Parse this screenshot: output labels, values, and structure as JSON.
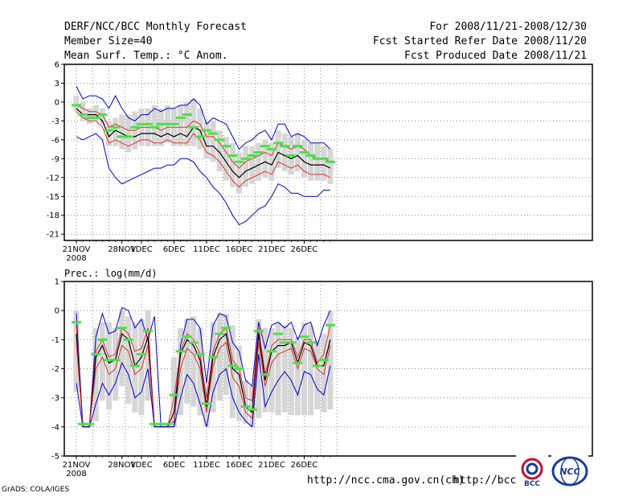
{
  "header": {
    "title": "DERF/NCC/BCC Monthly Forecast",
    "member": "Member Size=40",
    "variable": "Mean Surf. Temp.: °C Anom.",
    "period": "For 2008/11/21-2008/12/30",
    "started": "Fcst Started Refer Date 2008/11/20",
    "produced": "Fcst Produced Date 2008/11/21"
  },
  "footer": {
    "url1": "http://ncc.cma.gov.cn(ch)",
    "url2": "http://bcc.",
    "credit": "GrADS: COLA/IGES",
    "logo1": "BCC",
    "logo2": "NCC"
  },
  "colors": {
    "ensemble": "#000000",
    "spread": "#e03030",
    "extreme": "#0000cc",
    "member": "#49e249",
    "box": "#d6d6d6"
  },
  "chart_data": [
    {
      "type": "line",
      "title": "Mean Surf. Temp.: °C Anom.",
      "ylim": [
        -22,
        6
      ],
      "yticks": [
        6,
        3,
        0,
        -3,
        -6,
        -9,
        -12,
        -15,
        -18,
        -21
      ],
      "xticks": [
        {
          "day": 0,
          "label": "21NOV",
          "sub": "2008"
        },
        {
          "day": 7,
          "label": "28NOV"
        },
        {
          "day": 10,
          "label": "1DEC"
        },
        {
          "day": 15,
          "label": "6DEC"
        },
        {
          "day": 20,
          "label": "11DEC"
        },
        {
          "day": 25,
          "label": "16DEC"
        },
        {
          "day": 30,
          "label": "21DEC"
        },
        {
          "day": 35,
          "label": "26DEC"
        }
      ],
      "days": 40,
      "series": [
        {
          "name": "max",
          "values": [
            2.5,
            0.5,
            1,
            1,
            0.5,
            -1,
            1,
            -1,
            -2.5,
            -3,
            -2,
            -2,
            -1,
            -1.5,
            -1,
            -1,
            -0.5,
            -0.5,
            0.5,
            -0.5,
            -3.5,
            -2.5,
            -3,
            -3.5,
            -5.5,
            -7.5,
            -6.5,
            -6,
            -5,
            -4.5,
            -6,
            -3.5,
            -3.5,
            -5.5,
            -5,
            -5.5,
            -6.5,
            -6.5,
            -6.5,
            -7.5
          ]
        },
        {
          "name": "upper",
          "values": [
            -0.5,
            -1,
            -1.5,
            -1.5,
            -2,
            -4,
            -3.5,
            -4,
            -4.5,
            -4.5,
            -4,
            -4,
            -4,
            -4.5,
            -4,
            -4,
            -4,
            -4,
            -3,
            -3.5,
            -5.5,
            -5.5,
            -6.5,
            -8,
            -9.5,
            -10.5,
            -9.5,
            -9,
            -8.5,
            -8,
            -8.5,
            -6.5,
            -7,
            -7.5,
            -7,
            -7.5,
            -8.5,
            -9,
            -9,
            -9.5
          ]
        },
        {
          "name": "mean",
          "values": [
            -1,
            -2,
            -2,
            -2,
            -3,
            -5.5,
            -4.5,
            -5,
            -5.5,
            -5.5,
            -5,
            -5,
            -5,
            -5.5,
            -5,
            -5.5,
            -5,
            -5.5,
            -4,
            -4.5,
            -7,
            -7,
            -8,
            -9.5,
            -11,
            -12,
            -11,
            -10.5,
            -10,
            -9.5,
            -10,
            -8,
            -8.5,
            -9,
            -8.5,
            -9.5,
            -10,
            -10,
            -10,
            -10.5
          ]
        },
        {
          "name": "lower",
          "values": [
            -1.5,
            -2.5,
            -3,
            -3,
            -4,
            -6.5,
            -6,
            -6.5,
            -7,
            -6.5,
            -6,
            -6,
            -6.5,
            -6.5,
            -6,
            -6.5,
            -6.5,
            -6.5,
            -5,
            -6,
            -8,
            -8.5,
            -9.5,
            -11,
            -12.5,
            -13.5,
            -12.5,
            -12,
            -11.5,
            -11,
            -11.5,
            -9.5,
            -10,
            -10.5,
            -10,
            -11,
            -11.5,
            -11.5,
            -11.5,
            -12
          ]
        },
        {
          "name": "min",
          "values": [
            -5.5,
            -6,
            -5.5,
            -5,
            -6,
            -10.5,
            -12,
            -13,
            -12.5,
            -12,
            -11.5,
            -11,
            -10.5,
            -10.5,
            -10,
            -10,
            -9,
            -9,
            -9.5,
            -11,
            -12,
            -13.5,
            -14.5,
            -16,
            -18,
            -19.5,
            -19,
            -18,
            -17,
            -16.5,
            -15,
            -13,
            -13.5,
            -14.5,
            -14.5,
            -15,
            -15,
            -15,
            -14,
            -14
          ]
        },
        {
          "name": "member",
          "values": [
            -0.5,
            -2,
            -2.5,
            -2.5,
            -2,
            -4.5,
            -4,
            -5.5,
            -5.5,
            -4,
            -3.5,
            -3.5,
            -4,
            -3.5,
            -3.5,
            -3.5,
            -2.5,
            -2,
            -4,
            -5.5,
            -4.5,
            -5,
            -6,
            -7,
            -8.5,
            -9.5,
            -9,
            -8.5,
            -8,
            -7,
            -7.5,
            -6.5,
            -7,
            -8.5,
            -7,
            -8,
            -8.5,
            -9,
            -9,
            -9.5
          ]
        }
      ],
      "box_ranges": [
        [
          -1.5,
          1
        ],
        [
          -3,
          0
        ],
        [
          -3.5,
          -1
        ],
        [
          -3,
          -0.5
        ],
        [
          -3.5,
          -1
        ],
        [
          -7,
          -3
        ],
        [
          -7,
          -2.5
        ],
        [
          -7.5,
          -2
        ],
        [
          -8,
          -2
        ],
        [
          -7.5,
          -1.5
        ],
        [
          -7,
          -1
        ],
        [
          -7,
          -1
        ],
        [
          -7,
          -0.5
        ],
        [
          -7,
          -1
        ],
        [
          -6.5,
          -0.5
        ],
        [
          -7,
          -1
        ],
        [
          -7,
          -0.5
        ],
        [
          -7,
          0
        ],
        [
          -7,
          0.5
        ],
        [
          -7.5,
          -1
        ],
        [
          -9,
          -3
        ],
        [
          -9.5,
          -3
        ],
        [
          -11,
          -4.5
        ],
        [
          -12.5,
          -5.5
        ],
        [
          -13.5,
          -6.5
        ],
        [
          -14.5,
          -8
        ],
        [
          -13.5,
          -7
        ],
        [
          -13,
          -7
        ],
        [
          -12.5,
          -6.5
        ],
        [
          -12,
          -6
        ],
        [
          -12.5,
          -6.5
        ],
        [
          -10.5,
          -4.5
        ],
        [
          -11,
          -5
        ],
        [
          -11.5,
          -5.5
        ],
        [
          -11,
          -5
        ],
        [
          -12,
          -6
        ],
        [
          -12.5,
          -6.5
        ],
        [
          -12.5,
          -6.5
        ],
        [
          -12.5,
          -7
        ],
        [
          -13,
          -7.5
        ]
      ]
    },
    {
      "type": "line",
      "title": "Prec.: log(mm/d)",
      "ylim": [
        -5,
        1
      ],
      "yticks": [
        1,
        0,
        -1,
        -2,
        -3,
        -4,
        -5
      ],
      "xticks": [
        {
          "day": 0,
          "label": "21NOV",
          "sub": "2008"
        },
        {
          "day": 7,
          "label": "28NOV"
        },
        {
          "day": 10,
          "label": "1DEC"
        },
        {
          "day": 15,
          "label": "6DEC"
        },
        {
          "day": 20,
          "label": "11DEC"
        },
        {
          "day": 25,
          "label": "16DEC"
        },
        {
          "day": 30,
          "label": "21DEC"
        },
        {
          "day": 35,
          "label": "26DEC"
        }
      ],
      "days": 40,
      "series": [
        {
          "name": "max",
          "values": [
            -0.1,
            -4,
            -4,
            -0.9,
            -0.1,
            -0.8,
            -0.7,
            0.1,
            0,
            -0.6,
            -0.3,
            -1,
            -0.2,
            -4,
            -4,
            -4,
            -1.2,
            -0.3,
            -0.3,
            -0.6,
            -2.5,
            -0.5,
            -0.1,
            -0.2,
            -1.1,
            -1.4,
            -2.4,
            -2.6,
            -0.4,
            -1.3,
            -0.5,
            -0.4,
            -0.6,
            -0.4,
            -1,
            -0.5,
            -0.4,
            -1.2,
            -0.5,
            0
          ]
        },
        {
          "name": "upper",
          "values": [
            -0.5,
            -4,
            -4,
            -1.4,
            -1,
            -1.6,
            -1.5,
            -0.6,
            -0.8,
            -1.4,
            -1.3,
            -0.6,
            -4,
            -4,
            -4,
            -3,
            -1.4,
            -0.8,
            -1,
            -1.5,
            -3,
            -1.4,
            -0.8,
            -0.6,
            -1.7,
            -2,
            -3,
            -3.1,
            -0.6,
            -2.2,
            -1.2,
            -1,
            -1,
            -1,
            -1.6,
            -1,
            -1,
            -1.8,
            -1.5,
            -0.5
          ]
        },
        {
          "name": "mean",
          "values": [
            -0.8,
            -4,
            -4,
            -1.6,
            -1.2,
            -1.8,
            -1.7,
            -0.8,
            -1,
            -1.9,
            -1.6,
            -0.9,
            -4,
            -4,
            -4,
            -3.5,
            -1.5,
            -1,
            -1.2,
            -1.7,
            -3.3,
            -1.6,
            -1,
            -0.8,
            -2,
            -2.2,
            -3.3,
            -3.5,
            -0.8,
            -2.4,
            -1.4,
            -1.2,
            -1.2,
            -1.1,
            -1.8,
            -1.1,
            -1.2,
            -1.9,
            -1.9,
            -1
          ]
        },
        {
          "name": "lower",
          "values": [
            -1.1,
            -4,
            -4,
            -2,
            -1.6,
            -2.2,
            -2,
            -1.2,
            -1.4,
            -2.2,
            -2,
            -1.2,
            -4,
            -4,
            -4,
            -3.8,
            -2,
            -1.3,
            -1.5,
            -2,
            -3.5,
            -1.9,
            -1.3,
            -1.1,
            -2.3,
            -2.6,
            -3.5,
            -3.7,
            -1.1,
            -2.6,
            -1.8,
            -1.5,
            -1.4,
            -1.3,
            -2,
            -1.3,
            -1.4,
            -2,
            -2.2,
            -1.2
          ]
        },
        {
          "name": "min",
          "values": [
            -2.5,
            -4,
            -4,
            -3.2,
            -2.5,
            -2.9,
            -2.5,
            -1.8,
            -2.2,
            -3,
            -2.8,
            -2,
            -4,
            -4,
            -4,
            -4,
            -3,
            -2.2,
            -2.5,
            -3.2,
            -4,
            -2.8,
            -2.2,
            -2,
            -3,
            -3.5,
            -3.8,
            -4,
            -1.5,
            -3.3,
            -2.8,
            -2.4,
            -2.1,
            -2.4,
            -2.9,
            -2.1,
            -2.2,
            -2.7,
            -2.9,
            -1.9
          ]
        },
        {
          "name": "member",
          "values": [
            -0.4,
            -3.9,
            -3.9,
            -1.5,
            -1,
            -1.7,
            -1.7,
            -0.6,
            -1,
            -1.9,
            -1.5,
            -0.7,
            -3.9,
            -3.9,
            -3.9,
            -2.9,
            -1.4,
            -0.9,
            -1.1,
            -1.5,
            -3.2,
            -1.6,
            -0.8,
            -0.6,
            -1.9,
            -2,
            -3.3,
            -3.4,
            -0.7,
            -2.2,
            -1.4,
            -0.8,
            -1.1,
            -1.1,
            -1.8,
            -0.9,
            -1.1,
            -1.9,
            -1.7,
            -0.5
          ]
        }
      ],
      "box_ranges": [
        [
          -2.8,
          0
        ],
        [
          -4,
          -3.9
        ],
        [
          -4,
          -3.9
        ],
        [
          -3.8,
          -0.6
        ],
        [
          -3.1,
          -0.4
        ],
        [
          -3.4,
          -0.4
        ],
        [
          -3.1,
          -0.6
        ],
        [
          -2.6,
          0
        ],
        [
          -3.2,
          -0.2
        ],
        [
          -3.5,
          -0.4
        ],
        [
          -3.6,
          -0.3
        ],
        [
          -3.1,
          0
        ],
        [
          -4,
          -3.9
        ],
        [
          -4,
          -3.9
        ],
        [
          -4,
          -3.9
        ],
        [
          -4,
          -1.6
        ],
        [
          -3.6,
          -0.6
        ],
        [
          -3.2,
          -0.3
        ],
        [
          -3.3,
          -0.2
        ],
        [
          -3.6,
          -0.6
        ],
        [
          -4,
          -2.6
        ],
        [
          -3.5,
          -0.4
        ],
        [
          -3.1,
          -0.1
        ],
        [
          -2.9,
          -0.1
        ],
        [
          -3.7,
          -0.5
        ],
        [
          -3.8,
          -1.2
        ],
        [
          -3.9,
          -2.4
        ],
        [
          -4,
          -2.6
        ],
        [
          -3.7,
          -0.3
        ],
        [
          -3.5,
          -0.6
        ],
        [
          -3.5,
          -0.6
        ],
        [
          -3.6,
          -0.4
        ],
        [
          -3.5,
          -0.5
        ],
        [
          -3.6,
          -0.6
        ],
        [
          -3.6,
          -0.9
        ],
        [
          -3.6,
          -0.4
        ],
        [
          -3.6,
          -0.5
        ],
        [
          -3.4,
          -1
        ],
        [
          -3.5,
          -0.8
        ],
        [
          -3.4,
          0
        ]
      ]
    }
  ]
}
